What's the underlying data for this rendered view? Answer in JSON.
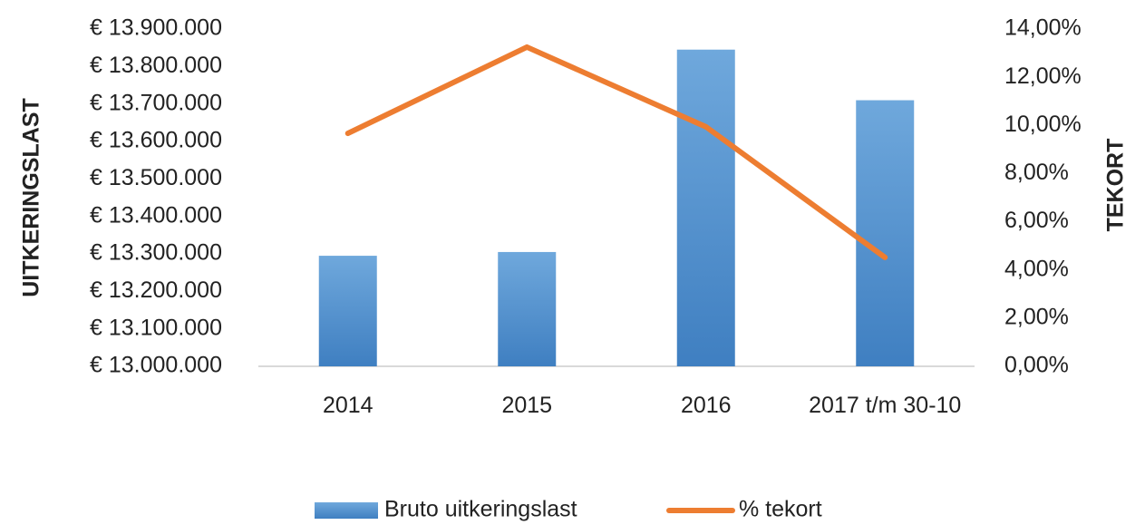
{
  "chart_data": {
    "type": "bar-line",
    "categories": [
      "2014",
      "2015",
      "2016",
      "2017 t/m 30-10"
    ],
    "series": [
      {
        "name": "Bruto uitkeringslast",
        "type": "bar",
        "color": "#5b9bd5",
        "values": [
          13295000,
          13305000,
          13845000,
          13710000
        ]
      },
      {
        "name": "% tekort",
        "type": "line",
        "color": "#ed7d31",
        "axis": "y2",
        "values": [
          9.67,
          13.25,
          9.94,
          4.52
        ]
      }
    ],
    "ylabel": "UITKERINGSLAST",
    "y2label": "TEKORT",
    "ylim": [
      13000000,
      13900000
    ],
    "yticks": [
      {
        "value": 13000000,
        "label": "€ 13.000.000"
      },
      {
        "value": 13100000,
        "label": "€ 13.100.000"
      },
      {
        "value": 13200000,
        "label": "€ 13.200.000"
      },
      {
        "value": 13300000,
        "label": "€ 13.300.000"
      },
      {
        "value": 13400000,
        "label": "€ 13.400.000"
      },
      {
        "value": 13500000,
        "label": "€ 13.500.000"
      },
      {
        "value": 13600000,
        "label": "€ 13.600.000"
      },
      {
        "value": 13700000,
        "label": "€ 13.700.000"
      },
      {
        "value": 13800000,
        "label": "€ 13.800.000"
      },
      {
        "value": 13900000,
        "label": "€ 13.900.000"
      }
    ],
    "y2lim": [
      0,
      14
    ],
    "y2ticks": [
      {
        "value": 0,
        "label": "0,00%"
      },
      {
        "value": 2,
        "label": "2,00%"
      },
      {
        "value": 4,
        "label": "4,00%"
      },
      {
        "value": 6,
        "label": "6,00%"
      },
      {
        "value": 8,
        "label": "8,00%"
      },
      {
        "value": 10,
        "label": "10,00%"
      },
      {
        "value": 12,
        "label": "12,00%"
      },
      {
        "value": 14,
        "label": "14,00%"
      }
    ],
    "legend": "bottom"
  }
}
